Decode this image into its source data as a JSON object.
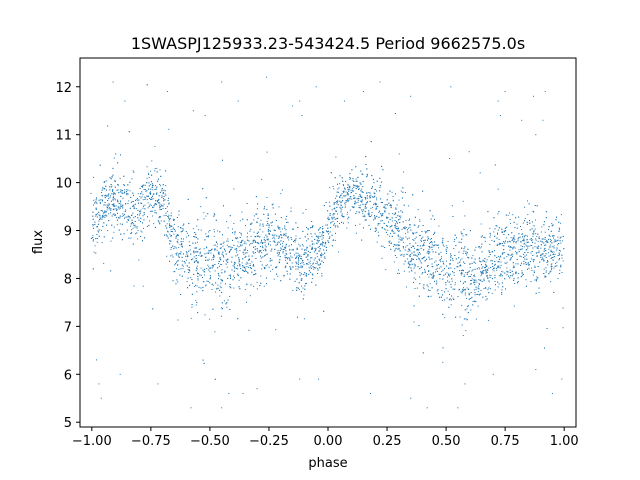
{
  "chart_data": {
    "type": "scatter",
    "title": "1SWASPJ125933.23-543424.5 Period 9662575.0s",
    "xlabel": "phase",
    "ylabel": "flux",
    "xlim": [
      -1.05,
      1.05
    ],
    "ylim": [
      4.9,
      12.6
    ],
    "x_ticks": [
      -1.0,
      -0.75,
      -0.5,
      -0.25,
      0.0,
      0.25,
      0.5,
      0.75,
      1.0
    ],
    "x_tick_labels": [
      "−1.00",
      "−0.75",
      "−0.50",
      "−0.25",
      "0.00",
      "0.25",
      "0.50",
      "0.75",
      "1.00"
    ],
    "y_ticks": [
      5,
      6,
      7,
      8,
      9,
      10,
      11,
      12
    ],
    "y_tick_labels": [
      "5",
      "6",
      "7",
      "8",
      "9",
      "10",
      "11",
      "12"
    ],
    "grid": false,
    "legend": "none",
    "marker_color": "#1f77b4",
    "series": [
      {
        "profile_x": [
          -1.0,
          -0.95,
          -0.9,
          -0.85,
          -0.8,
          -0.75,
          -0.7,
          -0.65,
          -0.6,
          -0.55,
          -0.5,
          -0.45,
          -0.4,
          -0.35,
          -0.3,
          -0.25,
          -0.2,
          -0.15,
          -0.1,
          -0.05,
          0.0,
          0.05,
          0.1,
          0.15,
          0.2,
          0.25,
          0.3,
          0.35,
          0.4,
          0.45,
          0.5,
          0.55,
          0.6,
          0.65,
          0.7,
          0.75,
          0.8,
          0.85,
          0.9,
          0.95,
          1.0
        ],
        "profile_center": [
          9.0,
          9.5,
          9.6,
          9.4,
          9.3,
          9.8,
          9.6,
          8.6,
          8.5,
          8.3,
          8.2,
          8.3,
          8.4,
          8.5,
          8.6,
          8.7,
          8.7,
          8.5,
          8.4,
          8.5,
          9.0,
          9.6,
          9.8,
          9.6,
          9.4,
          9.2,
          9.0,
          8.6,
          8.5,
          8.3,
          8.2,
          8.2,
          7.9,
          8.1,
          8.4,
          8.5,
          8.6,
          8.7,
          8.6,
          8.5,
          8.8
        ],
        "profile_spread": [
          0.7,
          0.6,
          0.5,
          0.6,
          0.7,
          0.6,
          0.6,
          0.6,
          0.6,
          0.8,
          0.8,
          0.8,
          0.8,
          0.7,
          0.7,
          0.7,
          0.6,
          0.7,
          0.7,
          0.6,
          0.6,
          0.5,
          0.5,
          0.6,
          0.6,
          0.6,
          0.7,
          0.7,
          0.7,
          0.8,
          0.8,
          0.8,
          0.8,
          0.7,
          0.7,
          0.7,
          0.7,
          0.7,
          0.7,
          0.6,
          0.7
        ],
        "outliers_low": [
          [
            -0.98,
            6.3
          ],
          [
            -0.97,
            5.8
          ],
          [
            -0.96,
            5.5
          ],
          [
            -0.88,
            6.0
          ],
          [
            -0.72,
            5.8
          ],
          [
            -0.58,
            5.3
          ],
          [
            -0.45,
            5.3
          ],
          [
            -0.42,
            5.6
          ],
          [
            -0.36,
            5.6
          ],
          [
            -0.3,
            5.7
          ],
          [
            -0.12,
            5.9
          ],
          [
            -0.04,
            5.9
          ],
          [
            0.18,
            5.6
          ],
          [
            0.35,
            5.5
          ],
          [
            0.42,
            5.3
          ],
          [
            0.55,
            5.3
          ],
          [
            0.58,
            5.8
          ],
          [
            0.7,
            6.0
          ],
          [
            0.88,
            6.1
          ],
          [
            0.95,
            5.6
          ],
          [
            0.99,
            5.9
          ]
        ],
        "outliers_high": [
          [
            -0.91,
            12.1
          ],
          [
            -0.86,
            11.7
          ],
          [
            -0.68,
            11.9
          ],
          [
            -0.57,
            11.5
          ],
          [
            -0.52,
            11.4
          ],
          [
            -0.45,
            12.1
          ],
          [
            -0.38,
            11.7
          ],
          [
            -0.26,
            12.2
          ],
          [
            -0.15,
            11.6
          ],
          [
            -0.12,
            11.7
          ],
          [
            -0.11,
            11.4
          ],
          [
            -0.05,
            12.0
          ],
          [
            0.07,
            11.7
          ],
          [
            0.15,
            11.9
          ],
          [
            0.22,
            12.1
          ],
          [
            0.35,
            11.8
          ],
          [
            0.52,
            12.0
          ],
          [
            0.72,
            11.7
          ],
          [
            0.73,
            11.4
          ],
          [
            0.75,
            11.9
          ],
          [
            0.82,
            11.3
          ],
          [
            0.87,
            11.8
          ],
          [
            0.91,
            11.3
          ],
          [
            0.92,
            11.9
          ],
          [
            0.88,
            11.0
          ]
        ]
      }
    ]
  }
}
